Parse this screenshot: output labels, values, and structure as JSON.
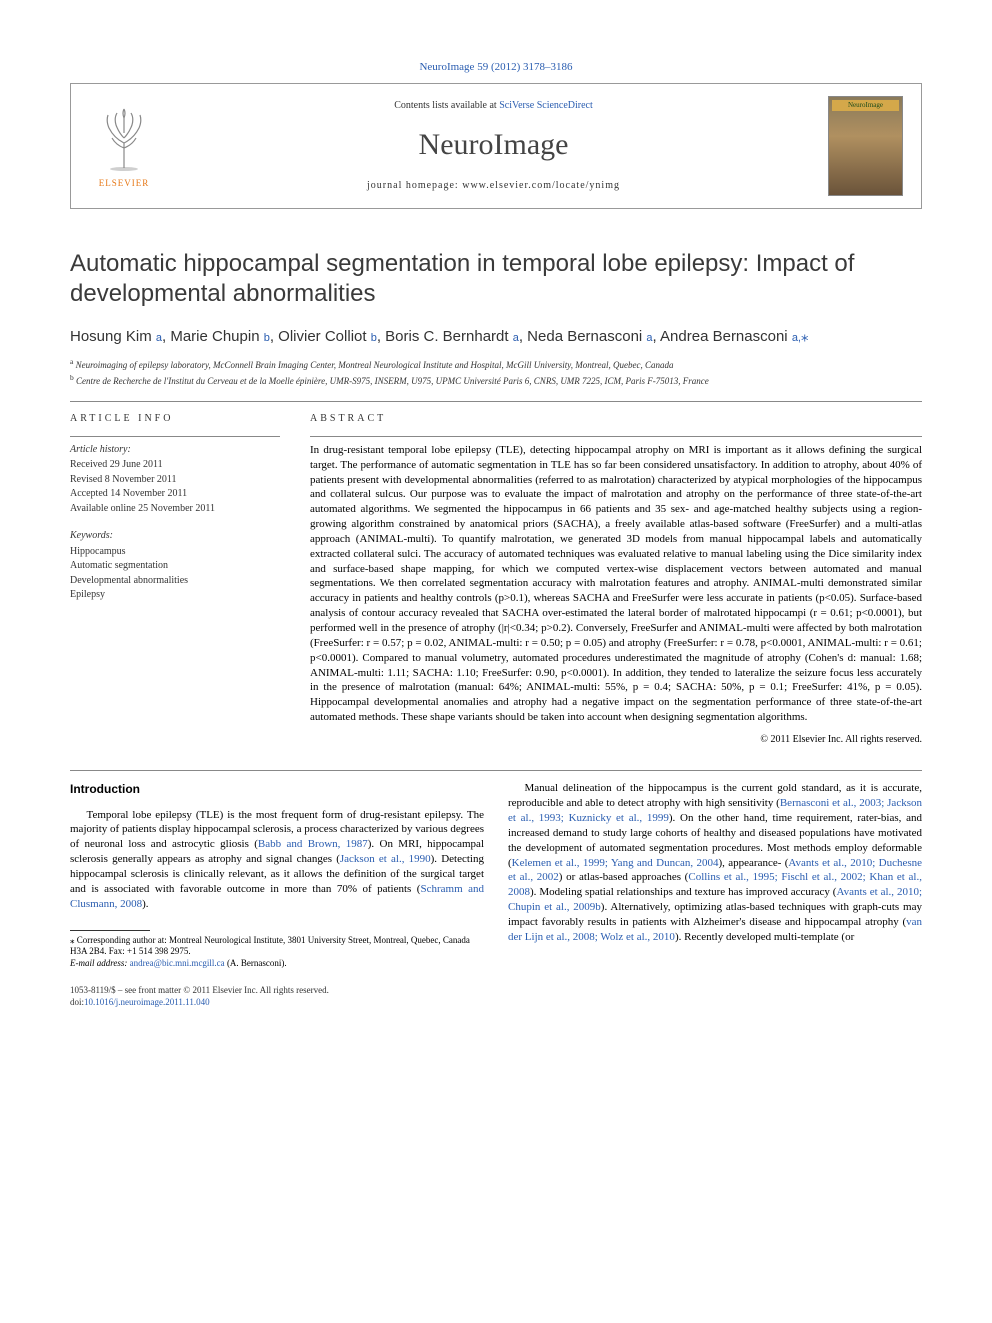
{
  "top_link": "NeuroImage 59 (2012) 3178–3186",
  "header": {
    "contents_prefix": "Contents lists available at ",
    "contents_link": "SciVerse ScienceDirect",
    "journal": "NeuroImage",
    "homepage_prefix": "journal homepage: ",
    "homepage_url": "www.elsevier.com/locate/ynimg",
    "publisher": "ELSEVIER",
    "cover_label": "NeuroImage"
  },
  "title": "Automatic hippocampal segmentation in temporal lobe epilepsy: Impact of developmental abnormalities",
  "authors_html": "Hosung Kim <a>a</a>, Marie Chupin <a>b</a>, Olivier Colliot <a>b</a>, Boris C. Bernhardt <a>a</a>, Neda Bernasconi <a>a</a>, Andrea Bernasconi <a>a,</a><span class='star'>⁎</span>",
  "affiliations": [
    {
      "sup": "a",
      "text": "Neuroimaging of epilepsy laboratory, McConnell Brain Imaging Center, Montreal Neurological Institute and Hospital, McGill University, Montreal, Quebec, Canada"
    },
    {
      "sup": "b",
      "text": "Centre de Recherche de l'Institut du Cerveau et de la Moelle épinière, UMR-S975, INSERM, U975, UPMC Université Paris 6, CNRS, UMR 7225, ICM, Paris F-75013, France"
    }
  ],
  "article_info": {
    "heading": "article info",
    "history_label": "Article history:",
    "history": [
      "Received 29 June 2011",
      "Revised 8 November 2011",
      "Accepted 14 November 2011",
      "Available online 25 November 2011"
    ],
    "keywords_label": "Keywords:",
    "keywords": [
      "Hippocampus",
      "Automatic segmentation",
      "Developmental abnormalities",
      "Epilepsy"
    ]
  },
  "abstract": {
    "heading": "abstract",
    "text": "In drug-resistant temporal lobe epilepsy (TLE), detecting hippocampal atrophy on MRI is important as it allows defining the surgical target. The performance of automatic segmentation in TLE has so far been considered unsatisfactory. In addition to atrophy, about 40% of patients present with developmental abnormalities (referred to as malrotation) characterized by atypical morphologies of the hippocampus and collateral sulcus. Our purpose was to evaluate the impact of malrotation and atrophy on the performance of three state-of-the-art automated algorithms. We segmented the hippocampus in 66 patients and 35 sex- and age-matched healthy subjects using a region-growing algorithm constrained by anatomical priors (SACHA), a freely available atlas-based software (FreeSurfer) and a multi-atlas approach (ANIMAL-multi). To quantify malrotation, we generated 3D models from manual hippocampal labels and automatically extracted collateral sulci. The accuracy of automated techniques was evaluated relative to manual labeling using the Dice similarity index and surface-based shape mapping, for which we computed vertex-wise displacement vectors between automated and manual segmentations. We then correlated segmentation accuracy with malrotation features and atrophy. ANIMAL-multi demonstrated similar accuracy in patients and healthy controls (p>0.1), whereas SACHA and FreeSurfer were less accurate in patients (p<0.05). Surface-based analysis of contour accuracy revealed that SACHA over-estimated the lateral border of malrotated hippocampi (r = 0.61; p<0.0001), but performed well in the presence of atrophy (|r|<0.34; p>0.2). Conversely, FreeSurfer and ANIMAL-multi were affected by both malrotation (FreeSurfer: r = 0.57; p = 0.02, ANIMAL-multi: r = 0.50; p = 0.05) and atrophy (FreeSurfer: r = 0.78, p<0.0001, ANIMAL-multi: r = 0.61; p<0.0001). Compared to manual volumetry, automated procedures underestimated the magnitude of atrophy (Cohen's d: manual: 1.68; ANIMAL-multi: 1.11; SACHA: 1.10; FreeSurfer: 0.90, p<0.0001). In addition, they tended to lateralize the seizure focus less accurately in the presence of malrotation (manual: 64%; ANIMAL-multi: 55%, p = 0.4; SACHA: 50%, p = 0.1; FreeSurfer: 41%, p = 0.05). Hippocampal developmental anomalies and atrophy had a negative impact on the segmentation performance of three state-of-the-art automated methods. These shape variants should be taken into account when designing segmentation algorithms.",
    "copyright": "© 2011 Elsevier Inc. All rights reserved."
  },
  "intro": {
    "heading": "Introduction",
    "p1_pre": "Temporal lobe epilepsy (TLE) is the most frequent form of drug-resistant epilepsy. The majority of patients display hippocampal sclerosis, a process characterized by various degrees of neuronal loss and astrocytic gliosis (",
    "p1_l1": "Babb and Brown, 1987",
    "p1_mid1": "). On MRI, hippocampal sclerosis generally appears as atrophy and signal changes (",
    "p1_l2": "Jackson et al., 1990",
    "p1_mid2": "). Detecting hippocampal sclerosis is clinically relevant, as it allows the definition of the surgical target and is associated with favorable outcome in more than 70% of patients (",
    "p1_l3": "Schramm and Clusmann, 2008",
    "p1_post": ").",
    "p2_pre": "Manual delineation of the hippocampus is the current gold standard, as it is accurate, reproducible and able to detect atrophy with high sensitivity (",
    "p2_l1": "Bernasconi et al., 2003; Jackson et al., 1993; Kuznicky et al., 1999",
    "p2_mid1": "). On the other hand, time requirement, rater-bias, and increased demand to study large cohorts of healthy and diseased populations have motivated the development of automated segmentation procedures. Most methods employ deformable (",
    "p2_l2": "Kelemen et al., 1999; Yang and Duncan, 2004",
    "p2_mid2": "), appearance- (",
    "p2_l3": "Avants et al., 2010; Duchesne et al., 2002",
    "p2_mid3": ") or atlas-based approaches (",
    "p2_l4": "Collins et al., 1995; Fischl et al., 2002; Khan et al., 2008",
    "p2_mid4": "). Modeling spatial relationships and texture has improved accuracy (",
    "p2_l5": "Avants et al., 2010; Chupin et al., 2009b",
    "p2_mid5": "). Alternatively, optimizing atlas-based techniques with graph-cuts may impact favorably results in patients with Alzheimer's disease and hippocampal atrophy (",
    "p2_l6": "van der Lijn et al., 2008; Wolz et al., 2010",
    "p2_post": "). Recently developed multi-template (or"
  },
  "footnote": {
    "star": "⁎ Corresponding author at: Montreal Neurological Institute, 3801 University Street, Montreal, Quebec, Canada H3A 2B4. Fax: +1 514 398 2975.",
    "email_label": "E-mail address: ",
    "email": "andrea@bic.mni.mcgill.ca",
    "email_who": " (A. Bernasconi)."
  },
  "bottom": {
    "issn": "1053-8119/$ – see front matter © 2011 Elsevier Inc. All rights reserved.",
    "doi_label": "doi:",
    "doi": "10.1016/j.neuroimage.2011.11.040"
  },
  "colors": {
    "link": "#2a5db0",
    "elsevier": "#e67817"
  }
}
